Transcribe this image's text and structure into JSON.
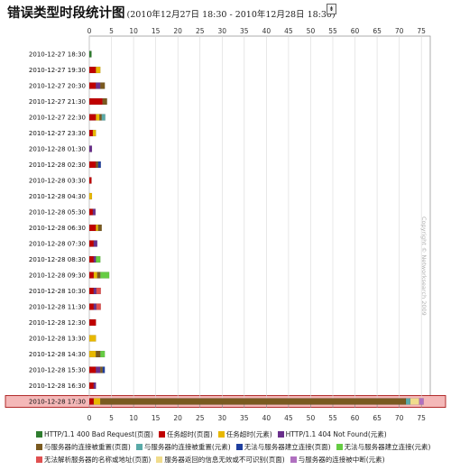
{
  "title": {
    "main": "错误类型时段统计图",
    "range": "(2010年12月27日 18:30 - 2010年12月28日 18:30)",
    "export_symbol": "⇟"
  },
  "copyright": "Copyright © Networksearch 2009",
  "chart_data": {
    "type": "bar",
    "orientation": "horizontal",
    "stacked": true,
    "xlim": [
      0,
      77
    ],
    "x_ticks": [
      0,
      5,
      10,
      15,
      20,
      25,
      30,
      35,
      40,
      45,
      50,
      55,
      60,
      65,
      70,
      75
    ],
    "grid": true,
    "legend_position": "bottom",
    "highlighted_category": "2010-12-28 17:30",
    "highlight_color": "#f4b8b8",
    "categories": [
      "2010-12-27 18:30",
      "2010-12-27 19:30",
      "2010-12-27 20:30",
      "2010-12-27 21:30",
      "2010-12-27 22:30",
      "2010-12-27 23:30",
      "2010-12-28 01:30",
      "2010-12-28 02:30",
      "2010-12-28 03:30",
      "2010-12-28 04:30",
      "2010-12-28 05:30",
      "2010-12-28 06:30",
      "2010-12-28 07:30",
      "2010-12-28 08:30",
      "2010-12-28 09:30",
      "2010-12-28 10:30",
      "2010-12-28 11:30",
      "2010-12-28 12:30",
      "2010-12-28 13:30",
      "2010-12-28 14:30",
      "2010-12-28 15:30",
      "2010-12-28 16:30",
      "2010-12-28 17:30"
    ],
    "series": [
      {
        "name": "HTTP/1.1 400 Bad Request(页面)",
        "color": "#2f7d2f",
        "values": [
          0.5,
          0,
          0,
          0,
          0,
          0,
          0,
          0,
          0,
          0,
          0,
          0,
          0,
          0,
          0,
          0,
          0,
          0,
          0,
          0,
          0,
          0,
          0
        ]
      },
      {
        "name": "任务超时(页面)",
        "color": "#c00000",
        "values": [
          0,
          1.5,
          1.5,
          3,
          1.5,
          0.8,
          0,
          1.5,
          0.5,
          0,
          0.8,
          1.5,
          1,
          1,
          1,
          1,
          1,
          1.5,
          0,
          0,
          1.5,
          1,
          1
        ]
      },
      {
        "name": "任务超时(元素)",
        "color": "#e8b800",
        "values": [
          0,
          1,
          0,
          0,
          0.8,
          0.7,
          0,
          0,
          0,
          0.6,
          0,
          0.5,
          0,
          0,
          0.8,
          0,
          0,
          0,
          1.5,
          1.5,
          0,
          0,
          1.5
        ]
      },
      {
        "name": "HTTP/1.1 404 Not Found(元素)",
        "color": "#6a2f8c",
        "values": [
          0,
          0,
          1,
          0,
          0,
          0,
          0.6,
          0,
          0,
          0,
          0.6,
          0,
          0.8,
          0.5,
          0,
          0.6,
          0.6,
          0,
          0,
          0,
          1,
          0.5,
          0
        ]
      },
      {
        "name": "与服务器的连接被重置(页面)",
        "color": "#7a5a20",
        "values": [
          0,
          0,
          1,
          1,
          0.5,
          0,
          0,
          0.5,
          0,
          0,
          0,
          0.8,
          0,
          0,
          0.7,
          0,
          0,
          0,
          0,
          1,
          0.5,
          0,
          69
        ]
      },
      {
        "name": "与服务器的连接被重置(元素)",
        "color": "#5aaaa8",
        "values": [
          0,
          0,
          0,
          0,
          0.8,
          0,
          0,
          0,
          0,
          0,
          0,
          0,
          0,
          0,
          0,
          0,
          0,
          0,
          0,
          0,
          0,
          0,
          1
        ]
      },
      {
        "name": "无法与服务器建立连接(页面)",
        "color": "#1f3f9f",
        "values": [
          0,
          0,
          0,
          0,
          0,
          0,
          0,
          0.6,
          0,
          0,
          0,
          0,
          0,
          0,
          0,
          0,
          0,
          0,
          0,
          0,
          0.5,
          0,
          0
        ]
      },
      {
        "name": "无法与服务器建立连接(元素)",
        "color": "#66cc44",
        "values": [
          0,
          0,
          0,
          0,
          0,
          0,
          0,
          0,
          0,
          0,
          0,
          0,
          0,
          1,
          2,
          0,
          0,
          0,
          0,
          1,
          0,
          0,
          0
        ]
      },
      {
        "name": "无法解析服务器的名称或地址(页面)",
        "color": "#e05050",
        "values": [
          0,
          0,
          0,
          0,
          0,
          0,
          0,
          0,
          0,
          0,
          0,
          0,
          0,
          0,
          0,
          1,
          1,
          0,
          0,
          0,
          0,
          0,
          0
        ]
      },
      {
        "name": "服务器返回的信息无效或不可识别(页面)",
        "color": "#f0dc8c",
        "values": [
          0,
          0,
          0,
          0,
          0,
          0,
          0,
          0,
          0,
          0,
          0,
          0,
          0,
          0,
          0,
          0,
          0,
          0,
          0,
          0,
          0,
          0,
          2
        ]
      },
      {
        "name": "与服务器的连接被中断(元素)",
        "color": "#b070c0",
        "values": [
          0,
          0,
          0,
          0,
          0,
          0,
          0,
          0,
          0,
          0,
          0,
          0,
          0,
          0,
          0,
          0,
          0,
          0,
          0,
          0,
          0,
          0,
          1
        ]
      }
    ]
  }
}
